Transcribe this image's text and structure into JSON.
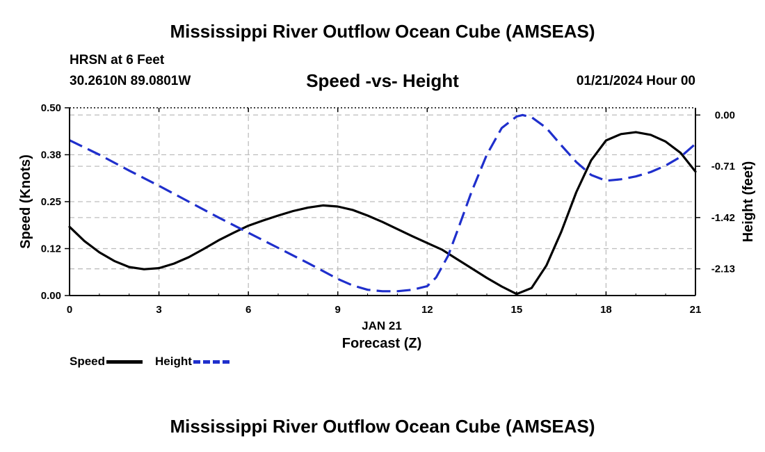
{
  "header": {
    "title": "Mississippi River Outflow Ocean Cube (AMSEAS)",
    "station": "HRSN at 6 Feet",
    "coords": "30.2610N  89.0801W",
    "subtitle": "Speed -vs- Height",
    "datetime": "01/21/2024 Hour 00"
  },
  "footer": {
    "title": "Mississippi River Outflow Ocean Cube (AMSEAS)"
  },
  "legend": {
    "speed_label": "Speed",
    "height_label": "Height"
  },
  "chart_data": {
    "type": "line",
    "title": "Speed -vs- Height",
    "xlabel": "Forecast (Z)",
    "xlabel_date": "JAN 21",
    "ylabel": "Speed (Knots)",
    "y2label": "Height (feet)",
    "xlim": [
      0,
      21
    ],
    "ylim": [
      0,
      0.5
    ],
    "y2lim": [
      -2.5,
      0.1
    ],
    "x_ticks": [
      0,
      3,
      6,
      9,
      12,
      15,
      18,
      21
    ],
    "x_tick_labels": [
      "0",
      "3",
      "6",
      "9",
      "12",
      "15",
      "18",
      "21"
    ],
    "y_ticks": [
      0.0,
      0.125,
      0.25,
      0.375,
      0.5
    ],
    "y_tick_labels": [
      "0.00",
      "0.12",
      "0.25",
      "0.38",
      "0.50"
    ],
    "y2_ticks": [
      0.0,
      -0.71,
      -1.42,
      -2.13
    ],
    "y2_tick_labels": [
      "0.00",
      "-0.71",
      "-1.42",
      "-2.13"
    ],
    "grid": true,
    "series": [
      {
        "name": "Speed",
        "axis": "left",
        "color": "#000000",
        "style": "solid",
        "x": [
          0,
          0.5,
          1,
          1.5,
          2,
          2.5,
          3,
          3.5,
          4,
          4.5,
          5,
          5.5,
          6,
          6.5,
          7,
          7.5,
          8,
          8.5,
          9,
          9.5,
          10,
          10.5,
          11,
          11.5,
          12,
          12.5,
          13,
          13.5,
          14,
          14.5,
          15,
          15.5,
          16,
          16.5,
          17,
          17.5,
          18,
          18.5,
          19,
          19.5,
          20,
          20.5,
          21
        ],
        "values": [
          0.183,
          0.145,
          0.115,
          0.092,
          0.076,
          0.07,
          0.073,
          0.085,
          0.102,
          0.124,
          0.147,
          0.167,
          0.186,
          0.2,
          0.213,
          0.225,
          0.234,
          0.24,
          0.237,
          0.228,
          0.213,
          0.196,
          0.177,
          0.158,
          0.14,
          0.122,
          0.097,
          0.072,
          0.047,
          0.024,
          0.004,
          0.02,
          0.08,
          0.17,
          0.275,
          0.36,
          0.413,
          0.43,
          0.435,
          0.428,
          0.41,
          0.38,
          0.33
        ]
      },
      {
        "name": "Height",
        "axis": "right",
        "color": "#1f2fcc",
        "style": "dashed",
        "x": [
          0,
          1,
          2,
          3,
          4,
          5,
          6,
          7,
          8,
          9,
          9.5,
          10,
          10.5,
          11,
          11.5,
          12,
          12.3,
          12.7,
          13,
          13.5,
          14,
          14.5,
          15,
          15.2,
          15.5,
          16,
          16.5,
          17,
          17.5,
          18,
          18.5,
          19,
          19.5,
          20,
          20.5,
          21
        ],
        "values": [
          -0.35,
          -0.55,
          -0.77,
          -0.98,
          -1.2,
          -1.42,
          -1.63,
          -1.84,
          -2.05,
          -2.27,
          -2.36,
          -2.42,
          -2.44,
          -2.44,
          -2.42,
          -2.37,
          -2.25,
          -1.95,
          -1.62,
          -1.05,
          -0.55,
          -0.18,
          -0.02,
          0.0,
          -0.03,
          -0.18,
          -0.42,
          -0.65,
          -0.83,
          -0.91,
          -0.89,
          -0.85,
          -0.79,
          -0.7,
          -0.58,
          -0.4
        ]
      }
    ]
  }
}
